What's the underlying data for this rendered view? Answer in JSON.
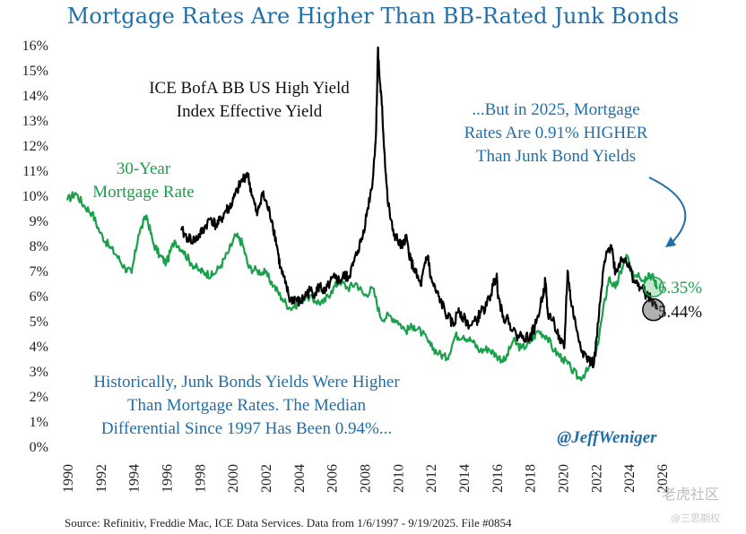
{
  "chart_data": {
    "type": "line",
    "title": "Mortgage Rates Are Higher Than BB-Rated Junk Bonds",
    "xlabel": "",
    "ylabel": "",
    "xlim": [
      1990,
      2026
    ],
    "ylim": [
      0,
      16
    ],
    "y_ticks": [
      "0%",
      "1%",
      "2%",
      "3%",
      "4%",
      "5%",
      "6%",
      "7%",
      "8%",
      "9%",
      "10%",
      "11%",
      "12%",
      "13%",
      "14%",
      "15%",
      "16%"
    ],
    "x_ticks": [
      "1990",
      "1992",
      "1994",
      "1996",
      "1998",
      "2000",
      "2002",
      "2004",
      "2006",
      "2008",
      "2010",
      "2012",
      "2014",
      "2016",
      "2018",
      "2020",
      "2022",
      "2024",
      "2026"
    ],
    "series": [
      {
        "name": "30-Year Mortgage Rate",
        "color": "#19a04b",
        "x": [
          1990.0,
          1990.5,
          1991.0,
          1991.5,
          1992.0,
          1992.5,
          1993.0,
          1993.5,
          1993.9,
          1994.3,
          1994.8,
          1995.2,
          1995.6,
          1996.0,
          1996.5,
          1997.0,
          1997.5,
          1998.0,
          1998.4,
          1998.8,
          1999.3,
          1999.8,
          2000.2,
          2000.6,
          2001.0,
          2001.5,
          2002.0,
          2002.5,
          2003.0,
          2003.5,
          2004.0,
          2004.5,
          2005.0,
          2005.5,
          2006.0,
          2006.5,
          2007.0,
          2007.5,
          2008.0,
          2008.5,
          2009.0,
          2009.5,
          2010.0,
          2010.5,
          2011.0,
          2011.5,
          2012.0,
          2012.5,
          2013.0,
          2013.5,
          2014.0,
          2014.5,
          2015.0,
          2015.5,
          2016.0,
          2016.5,
          2017.0,
          2017.5,
          2018.0,
          2018.5,
          2019.0,
          2019.5,
          2020.0,
          2020.5,
          2021.0,
          2021.5,
          2022.0,
          2022.4,
          2022.8,
          2023.2,
          2023.6,
          2023.9,
          2024.2,
          2024.6,
          2024.9,
          2025.2,
          2025.5,
          2025.72
        ],
        "values": [
          9.8,
          10.1,
          9.6,
          9.3,
          8.5,
          8.0,
          7.6,
          7.1,
          6.9,
          8.4,
          9.2,
          8.1,
          7.6,
          7.3,
          8.2,
          7.8,
          7.3,
          7.0,
          6.9,
          6.8,
          7.2,
          7.8,
          8.4,
          8.1,
          7.1,
          7.0,
          6.9,
          6.4,
          5.9,
          5.5,
          5.7,
          6.0,
          5.8,
          5.7,
          6.2,
          6.6,
          6.3,
          6.5,
          6.0,
          6.3,
          5.1,
          5.2,
          5.0,
          4.6,
          4.8,
          4.5,
          4.0,
          3.7,
          3.5,
          4.4,
          4.4,
          4.2,
          3.8,
          3.9,
          3.6,
          3.4,
          4.2,
          3.9,
          4.1,
          4.6,
          4.4,
          3.8,
          3.5,
          3.1,
          2.7,
          3.0,
          3.6,
          5.2,
          6.7,
          6.3,
          7.1,
          7.6,
          6.8,
          6.9,
          6.6,
          6.9,
          6.7,
          6.35
        ]
      },
      {
        "name": "ICE BofA BB US High Yield Index Effective Yield",
        "color": "#000000",
        "x": [
          1996.9,
          1997.3,
          1997.7,
          1998.0,
          1998.3,
          1998.7,
          1999.0,
          1999.3,
          1999.6,
          1999.8,
          2000.0,
          2000.3,
          2000.6,
          2000.9,
          2001.2,
          2001.5,
          2001.8,
          2002.1,
          2002.4,
          2002.7,
          2002.9,
          2003.2,
          2003.5,
          2003.8,
          2004.1,
          2004.4,
          2004.7,
          2005.0,
          2005.3,
          2005.6,
          2005.9,
          2006.2,
          2006.5,
          2006.8,
          2007.0,
          2007.3,
          2007.6,
          2007.9,
          2008.2,
          2008.5,
          2008.7,
          2008.82,
          2008.9,
          2009.05,
          2009.2,
          2009.4,
          2009.7,
          2010.0,
          2010.3,
          2010.5,
          2010.8,
          2011.1,
          2011.4,
          2011.7,
          2011.85,
          2012.0,
          2012.3,
          2012.6,
          2013.0,
          2013.4,
          2013.7,
          2014.0,
          2014.4,
          2014.8,
          2015.0,
          2015.4,
          2015.8,
          2016.0,
          2016.1,
          2016.4,
          2016.8,
          2017.2,
          2017.6,
          2018.0,
          2018.4,
          2018.8,
          2018.95,
          2019.1,
          2019.5,
          2019.9,
          2020.1,
          2020.3,
          2020.5,
          2020.8,
          2021.2,
          2021.6,
          2021.9,
          2022.2,
          2022.5,
          2022.8,
          2022.95,
          2023.2,
          2023.5,
          2023.8,
          2024.1,
          2024.4,
          2024.8,
          2025.1,
          2025.4,
          2025.72
        ],
        "values": [
          8.6,
          8.3,
          8.2,
          8.4,
          8.7,
          9.1,
          8.8,
          9.0,
          9.4,
          9.5,
          9.7,
          10.2,
          10.6,
          10.9,
          10.0,
          9.2,
          10.1,
          9.6,
          9.0,
          8.0,
          7.1,
          6.5,
          5.8,
          5.9,
          5.7,
          6.0,
          6.2,
          6.1,
          6.4,
          6.1,
          6.5,
          6.7,
          6.6,
          6.8,
          6.7,
          7.2,
          7.8,
          8.4,
          9.5,
          10.6,
          12.5,
          15.9,
          14.8,
          13.6,
          11.8,
          9.8,
          8.6,
          8.2,
          7.9,
          8.4,
          7.4,
          6.9,
          6.4,
          7.3,
          7.6,
          6.7,
          6.2,
          5.8,
          5.2,
          4.8,
          5.5,
          5.1,
          4.8,
          5.0,
          5.3,
          5.6,
          6.4,
          6.8,
          6.0,
          5.2,
          4.9,
          4.4,
          4.4,
          4.3,
          4.9,
          6.0,
          6.6,
          5.3,
          4.9,
          4.1,
          3.9,
          7.0,
          5.8,
          4.8,
          3.8,
          3.4,
          3.3,
          5.2,
          7.2,
          7.9,
          8.0,
          6.9,
          7.4,
          7.5,
          7.0,
          6.5,
          6.3,
          6.0,
          5.8,
          5.44
        ]
      }
    ],
    "end_values": {
      "mortgage": "6.35%",
      "junk": "5.44%"
    },
    "annotations": {
      "junk_label_line1": "ICE BofA BB US High Yield",
      "junk_label_line2": "Index Effective Yield",
      "mortgage_label_line1": "30-Year",
      "mortgage_label_line2": "Mortgage Rate",
      "callout_line1": "...But in 2025, Mortgage",
      "callout_line2": "Rates Are 0.91% HIGHER",
      "callout_line3": "Than Junk Bond Yields",
      "history_line1": "Historically, Junk Bonds Yields Were Higher",
      "history_line2": "Than Mortgage Rates. The Median",
      "history_line3": "Differential Since 1997 Has Been 0.94%...",
      "handle": "@JeffWeniger"
    },
    "colors": {
      "title": "#1f6fa8",
      "mortgage": "#19a04b",
      "junk": "#000000",
      "callout": "#1f6fa8"
    }
  },
  "footer": {
    "source": "Source: Refinitiv, Freddie Mac, ICE Data Services. Data from 1/6/1997 - 9/19/2025. File #0854"
  },
  "watermark": {
    "line1": "老虎社区",
    "line2": "@三思期权"
  }
}
